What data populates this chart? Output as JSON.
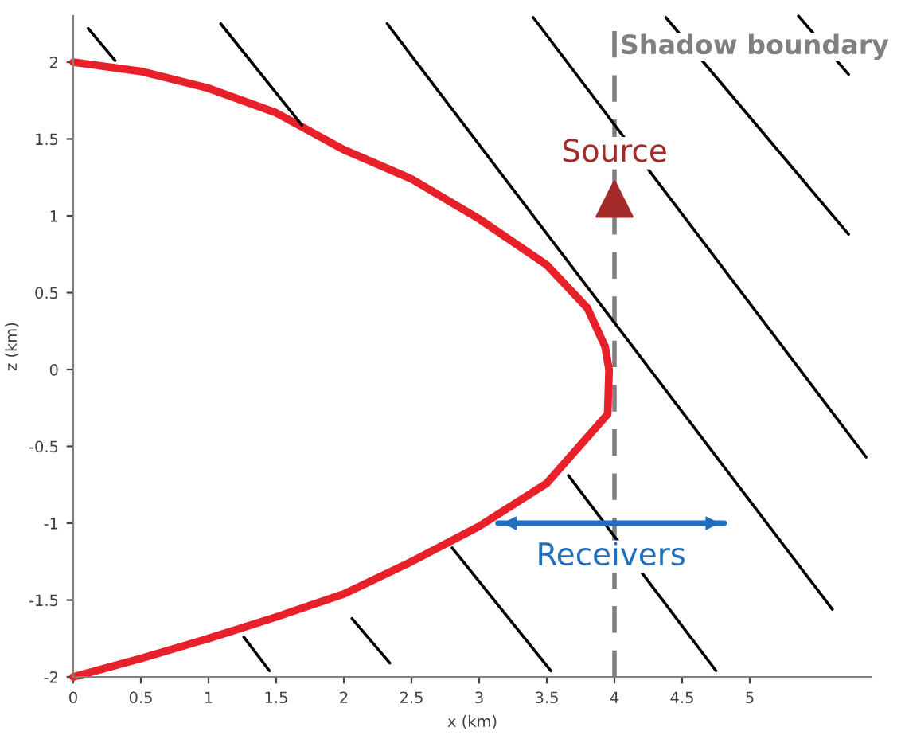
{
  "chart_data": {
    "type": "line",
    "xlabel": "x (km)",
    "ylabel": "z (km)",
    "xlim": [
      0,
      5.9
    ],
    "ylim": [
      -2,
      2.3
    ],
    "xticks": [
      0,
      0.5,
      1,
      1.5,
      2,
      2.5,
      3,
      3.5,
      4,
      4.5,
      5
    ],
    "yticks": [
      -2,
      -1.5,
      -1,
      -0.5,
      0,
      0.5,
      1,
      1.5,
      2
    ],
    "grid": false,
    "marker": "none",
    "ref_lines": [
      {
        "axis": "x",
        "value": 4,
        "label": "Shadow boundary",
        "color": "#808080",
        "line_style": "dashed"
      }
    ],
    "series": [
      {
        "color": "#e8202a",
        "x": [
          0,
          0.5,
          1,
          1.5,
          2,
          2.5,
          3,
          3.5,
          3.8,
          3.93,
          3.96,
          3.95,
          3.5,
          3,
          2.5,
          2,
          1.5,
          1,
          0.5,
          0
        ],
        "values": [
          2,
          1.94,
          1.83,
          1.67,
          1.43,
          1.24,
          0.98,
          0.68,
          0.4,
          0.15,
          0,
          -0.29,
          -0.74,
          -1.02,
          -1.25,
          -1.46,
          -1.61,
          -1.75,
          -1.88,
          -2
        ]
      },
      {
        "color": "#000000",
        "x": [
          0.11,
          0.31
        ],
        "values": [
          2.22,
          2.01
        ]
      },
      {
        "color": "#000000",
        "x": [
          1.09,
          1.69
        ],
        "values": [
          2.25,
          1.59
        ]
      },
      {
        "color": "#000000",
        "x": [
          2.32,
          5.61
        ],
        "values": [
          2.25,
          -1.56
        ]
      },
      {
        "color": "#000000",
        "x": [
          3.4,
          5.86
        ],
        "values": [
          2.29,
          -0.57
        ]
      },
      {
        "color": "#000000",
        "x": [
          4.38,
          5.73
        ],
        "values": [
          2.29,
          0.88
        ]
      },
      {
        "color": "#000000",
        "x": [
          5.36,
          5.73
        ],
        "values": [
          2.3,
          1.92
        ]
      },
      {
        "color": "#000000",
        "x": [
          3.66,
          4.75
        ],
        "values": [
          -0.69,
          -1.96
        ]
      },
      {
        "color": "#000000",
        "x": [
          2.8,
          3.53
        ],
        "values": [
          -1.16,
          -1.96
        ]
      },
      {
        "color": "#000000",
        "x": [
          2.06,
          2.34
        ],
        "values": [
          -1.62,
          -1.91
        ]
      },
      {
        "color": "#000000",
        "x": [
          1.26,
          1.45
        ],
        "values": [
          -1.74,
          -1.96
        ]
      },
      {
        "type": "scatter",
        "name": "Source",
        "color": "#a52a2a",
        "marker": "triangle",
        "x": [
          4
        ],
        "values": [
          1.11
        ]
      },
      {
        "name": "Receivers",
        "color": "#1f6fbf",
        "x": [
          3.14,
          4.81
        ],
        "values": [
          -1,
          -1
        ]
      }
    ]
  }
}
